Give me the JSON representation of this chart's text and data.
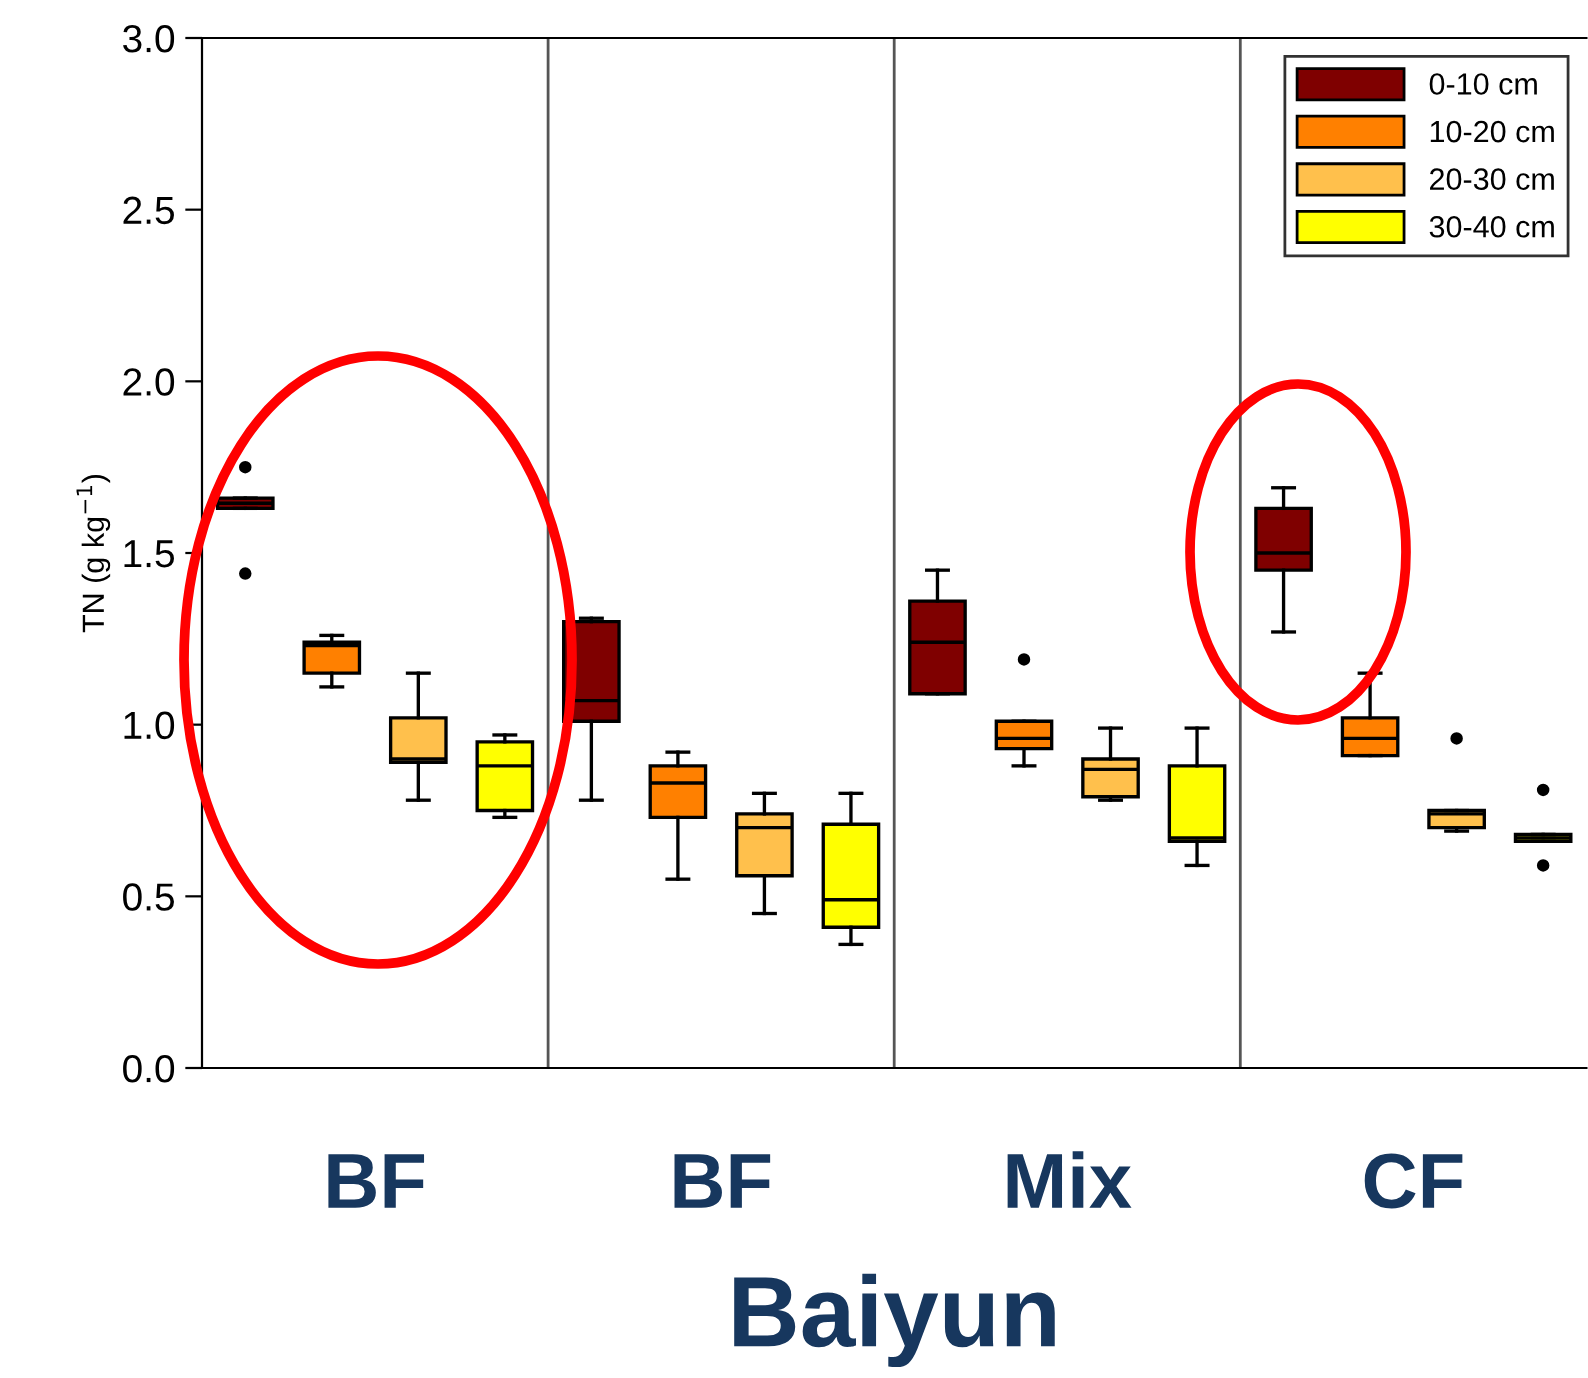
{
  "chart_data": {
    "type": "box",
    "xlabel": "Baiyun",
    "ylabel": "TN (g kg$^{−1}$)",
    "categories": [
      "BF",
      "BF",
      "Mix",
      "CF"
    ],
    "ylim": [
      0,
      3.0
    ],
    "yticks": [
      {
        "value": 0,
        "label": "0.0"
      },
      0.5,
      {
        "value": 1,
        "label": "1.0"
      },
      1.5,
      {
        "value": 2,
        "label": "2.0"
      },
      2.5,
      {
        "value": 3,
        "label": "3.0"
      }
    ],
    "grid": "x",
    "legend": "top right",
    "series": [
      {
        "name": "0-10 cm",
        "color": "#7f0000",
        "boxes": [
          {
            "low": 1.63,
            "q1": 1.63,
            "median": 1.645,
            "q3": 1.66,
            "high": 1.66,
            "outliers": [
              1.44,
              1.75
            ]
          },
          {
            "low": 0.78,
            "q1": 1.01,
            "median": 1.07,
            "q3": 1.3,
            "high": 1.31
          },
          {
            "low": 1.09,
            "q1": 1.09,
            "median": 1.24,
            "q3": 1.36,
            "high": 1.45
          },
          {
            "low": 1.27,
            "q1": 1.45,
            "median": 1.5,
            "q3": 1.63,
            "high": 1.69
          }
        ]
      },
      {
        "name": "10-20 cm",
        "color": "#ff8000",
        "boxes": [
          {
            "low": 1.11,
            "q1": 1.15,
            "median": 1.23,
            "q3": 1.24,
            "high": 1.26
          },
          {
            "low": 0.55,
            "q1": 0.73,
            "median": 0.83,
            "q3": 0.88,
            "high": 0.92
          },
          {
            "low": 0.88,
            "q1": 0.93,
            "median": 0.96,
            "q3": 1.01,
            "high": 1.01,
            "outliers": [
              1.19
            ]
          },
          {
            "low": 0.91,
            "q1": 0.91,
            "median": 0.96,
            "q3": 1.02,
            "high": 1.15
          }
        ]
      },
      {
        "name": "20-30 cm",
        "color": "#ffc04c",
        "boxes": [
          {
            "low": 0.78,
            "q1": 0.89,
            "median": 0.9,
            "q3": 1.02,
            "high": 1.15
          },
          {
            "low": 0.45,
            "q1": 0.56,
            "median": 0.7,
            "q3": 0.74,
            "high": 0.8
          },
          {
            "low": 0.78,
            "q1": 0.79,
            "median": 0.87,
            "q3": 0.9,
            "high": 0.99
          },
          {
            "low": 0.69,
            "q1": 0.7,
            "median": 0.74,
            "q3": 0.75,
            "high": 0.75,
            "outliers": [
              0.96
            ]
          }
        ]
      },
      {
        "name": "30-40 cm",
        "color": "#ffff00",
        "boxes": [
          {
            "low": 0.73,
            "q1": 0.75,
            "median": 0.88,
            "q3": 0.95,
            "high": 0.97
          },
          {
            "low": 0.36,
            "q1": 0.41,
            "median": 0.49,
            "q3": 0.71,
            "high": 0.8
          },
          {
            "low": 0.59,
            "q1": 0.66,
            "median": 0.67,
            "q3": 0.88,
            "high": 0.99
          },
          {
            "low": 0.66,
            "q1": 0.66,
            "median": 0.67,
            "q3": 0.68,
            "high": 0.68,
            "outliers": [
              0.59,
              0.81
            ]
          }
        ]
      }
    ]
  }
}
